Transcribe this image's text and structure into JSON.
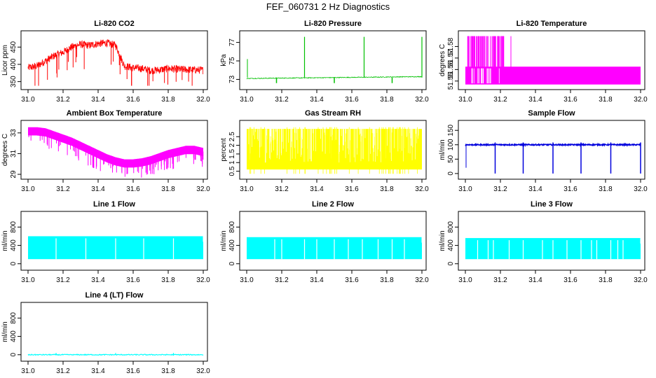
{
  "title": "FEF_060731  2 Hz Diagnostics",
  "chart_data": [
    {
      "id": "co2",
      "type": "line",
      "title": "Li-820 CO2",
      "ylabel": "Licor ppm",
      "color": "#ff0000",
      "xlim": [
        31.0,
        32.0
      ],
      "ylim": [
        335,
        485
      ],
      "yticks": [
        350,
        400,
        450
      ],
      "xticks": [
        "31.0",
        "31.2",
        "31.4",
        "31.6",
        "31.8",
        "32.0"
      ],
      "x": [
        31.0,
        31.05,
        31.1,
        31.15,
        31.2,
        31.25,
        31.3,
        31.35,
        31.4,
        31.45,
        31.5,
        31.55,
        31.6,
        31.65,
        31.7,
        31.75,
        31.8,
        31.85,
        31.9,
        31.95,
        32.0
      ],
      "y": [
        390,
        395,
        410,
        425,
        435,
        450,
        458,
        455,
        460,
        462,
        455,
        395,
        390,
        388,
        382,
        384,
        388,
        386,
        385,
        384,
        383
      ]
    },
    {
      "id": "press",
      "type": "line",
      "title": "Li-820 Pressure",
      "ylabel": "kPa",
      "color": "#00c000",
      "xlim": [
        31.0,
        32.0
      ],
      "ylim": [
        72.2,
        77.8
      ],
      "yticks": [
        73,
        75,
        77
      ],
      "xticks": [
        "31.0",
        "31.2",
        "31.4",
        "31.6",
        "31.8",
        "32.0"
      ],
      "x": [
        31.0,
        32.0
      ],
      "y": [
        73.1,
        73.3
      ]
    },
    {
      "id": "temp",
      "type": "line",
      "title": "Li-820 Temperature",
      "ylabel": "degrees C",
      "color": "#ff00ff",
      "xlim": [
        31.0,
        32.0
      ],
      "ylim": [
        51.545,
        51.59
      ],
      "yticks": [
        51.55,
        51.56,
        51.57,
        51.58
      ],
      "xticks": [
        "31.0",
        "31.2",
        "31.4",
        "31.6",
        "31.8",
        "32.0"
      ],
      "x": [
        31.0,
        32.0
      ],
      "y": [
        51.56,
        51.56
      ]
    },
    {
      "id": "box",
      "type": "line",
      "title": "Ambient Box Temperature",
      "ylabel": "degrees C",
      "color": "#ff00ff",
      "xlim": [
        31.0,
        32.0
      ],
      "ylim": [
        28.8,
        33.8
      ],
      "yticks": [
        29,
        31,
        33
      ],
      "xticks": [
        "31.0",
        "31.2",
        "31.4",
        "31.6",
        "31.8",
        "32.0"
      ],
      "x": [
        31.0,
        31.05,
        31.1,
        31.15,
        31.2,
        31.25,
        31.3,
        31.35,
        31.4,
        31.45,
        31.5,
        31.55,
        31.6,
        31.65,
        31.7,
        31.75,
        31.8,
        31.85,
        31.9,
        31.95,
        32.0
      ],
      "y": [
        33.2,
        33.2,
        33.1,
        32.8,
        32.5,
        32.2,
        31.8,
        31.4,
        31.0,
        30.6,
        30.3,
        30.1,
        30.1,
        30.2,
        30.4,
        30.7,
        31.0,
        31.2,
        31.4,
        31.4,
        31.2
      ]
    },
    {
      "id": "rh",
      "type": "line",
      "title": "Gas Stream RH",
      "ylabel": "percent",
      "color": "#ffff00",
      "xlim": [
        31.0,
        32.0
      ],
      "ylim": [
        0.2,
        3.2
      ],
      "yticks": [
        0.5,
        1.0,
        1.5,
        2.0,
        2.5
      ],
      "xticks": [
        "31.0",
        "31.2",
        "31.4",
        "31.6",
        "31.8",
        "32.0"
      ],
      "x": [
        31.0,
        32.0
      ],
      "y": [
        2.3,
        2.3
      ]
    },
    {
      "id": "sflow",
      "type": "line",
      "title": "Sample Flow",
      "ylabel": "ml/min",
      "color": "#0000dd",
      "xlim": [
        31.0,
        32.0
      ],
      "ylim": [
        -10,
        170
      ],
      "yticks": [
        0,
        50,
        100,
        150
      ],
      "xticks": [
        "31.0",
        "31.2",
        "31.4",
        "31.6",
        "31.8",
        "32.0"
      ],
      "x": [
        31.0,
        32.0
      ],
      "y": [
        100,
        100
      ]
    },
    {
      "id": "l1",
      "type": "line",
      "title": "Line 1 Flow",
      "ylabel": "ml/min",
      "color": "#00ffff",
      "xlim": [
        31.0,
        32.0
      ],
      "ylim": [
        -80,
        1050
      ],
      "yticks": [
        0,
        400,
        800
      ],
      "xticks": [
        "31.0",
        "31.2",
        "31.4",
        "31.6",
        "31.8",
        "32.0"
      ],
      "x": [
        31.0,
        32.0
      ],
      "y": [
        600,
        600
      ]
    },
    {
      "id": "l2",
      "type": "line",
      "title": "Line 2 Flow",
      "ylabel": "ml/min",
      "color": "#00ffff",
      "xlim": [
        31.0,
        32.0
      ],
      "ylim": [
        -80,
        1050
      ],
      "yticks": [
        0,
        400,
        800
      ],
      "xticks": [
        "31.0",
        "31.2",
        "31.4",
        "31.6",
        "31.8",
        "32.0"
      ],
      "x": [
        31.0,
        32.0
      ],
      "y": [
        580,
        580
      ]
    },
    {
      "id": "l3",
      "type": "line",
      "title": "Line 3 Flow",
      "ylabel": "ml/min",
      "color": "#00ffff",
      "xlim": [
        31.0,
        32.0
      ],
      "ylim": [
        -80,
        1050
      ],
      "yticks": [
        0,
        400,
        800
      ],
      "xticks": [
        "31.0",
        "31.2",
        "31.4",
        "31.6",
        "31.8",
        "32.0"
      ],
      "x": [
        31.0,
        32.0
      ],
      "y": [
        560,
        560
      ]
    },
    {
      "id": "l4",
      "type": "line",
      "title": "Line 4 (LT) Flow",
      "ylabel": "ml/min",
      "color": "#00ffff",
      "xlim": [
        31.0,
        32.0
      ],
      "ylim": [
        -80,
        1050
      ],
      "yticks": [
        0,
        400,
        800
      ],
      "xticks": [
        "31.0",
        "31.2",
        "31.4",
        "31.6",
        "31.8",
        "32.0"
      ],
      "x": [
        31.0,
        32.0
      ],
      "y": [
        0,
        0
      ]
    }
  ]
}
